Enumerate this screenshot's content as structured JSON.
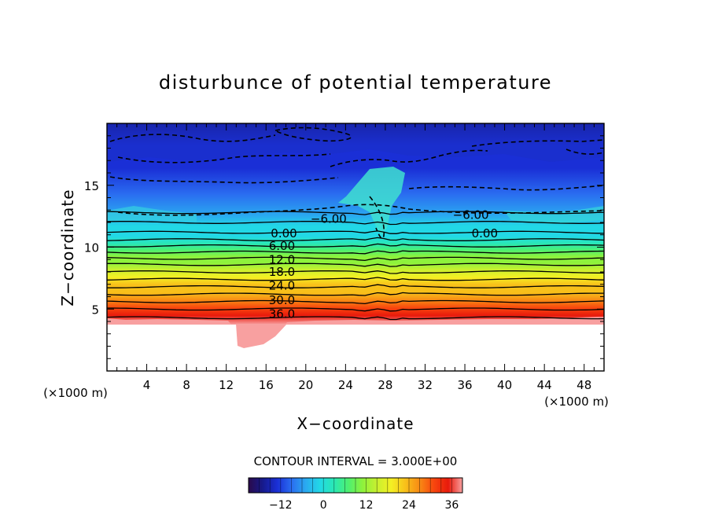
{
  "chart_data": {
    "type": "heatmap",
    "title": "disturbunce of potential temperature",
    "xlabel": "X−coordinate",
    "ylabel": "Z−coordinate",
    "x_unit_left": "(×1000 m)",
    "x_unit_right": "(×1000 m)",
    "xlim": [
      0,
      50
    ],
    "ylim": [
      0,
      20
    ],
    "x_ticks": [
      4,
      8,
      12,
      16,
      20,
      24,
      28,
      32,
      36,
      40,
      44,
      48
    ],
    "y_ticks": [
      5,
      10,
      15
    ],
    "contour_interval_text": "CONTOUR INTERVAL = 3.000E+00",
    "contour_labels": [
      {
        "text": "−6.00",
        "x": 22.3,
        "z": 12.3
      },
      {
        "text": "−6.00",
        "x": 36.6,
        "z": 12.6
      },
      {
        "text": "0.00",
        "x": 17.8,
        "z": 11.1
      },
      {
        "text": "0.00",
        "x": 38.0,
        "z": 11.1
      },
      {
        "text": "6.00",
        "x": 17.6,
        "z": 10.1
      },
      {
        "text": "12.0",
        "x": 17.6,
        "z": 9.0
      },
      {
        "text": "18.0",
        "x": 17.6,
        "z": 8.0
      },
      {
        "text": "24.0",
        "x": 17.6,
        "z": 6.9
      },
      {
        "text": "30.0",
        "x": 17.6,
        "z": 5.7
      },
      {
        "text": "36.0",
        "x": 17.6,
        "z": 4.6
      }
    ],
    "colorbar": {
      "range": [
        -21,
        39
      ],
      "ticks": [
        -12,
        0,
        12,
        24,
        36
      ],
      "tick_labels": [
        "−12",
        "0",
        "12",
        "24",
        "36"
      ]
    },
    "field_description_levels": [
      {
        "z": 4.3,
        "value": 39
      },
      {
        "z": 5.0,
        "value": 36
      },
      {
        "z": 5.6,
        "value": 30
      },
      {
        "z": 6.2,
        "value": 27
      },
      {
        "z": 6.8,
        "value": 24
      },
      {
        "z": 7.4,
        "value": 21
      },
      {
        "z": 8.0,
        "value": 18
      },
      {
        "z": 8.6,
        "value": 15
      },
      {
        "z": 9.1,
        "value": 12
      },
      {
        "z": 9.6,
        "value": 9
      },
      {
        "z": 10.1,
        "value": 6
      },
      {
        "z": 10.6,
        "value": 3
      },
      {
        "z": 11.2,
        "value": 0
      },
      {
        "z": 12.0,
        "value": -3
      },
      {
        "z": 12.8,
        "value": -6
      },
      {
        "z": 14.5,
        "value": -9
      },
      {
        "z": 16.5,
        "value": -12
      },
      {
        "z": 18.3,
        "value": -15
      },
      {
        "z": 20.0,
        "value": -18
      }
    ]
  },
  "colors": {
    "palette": [
      "#2a0a4a",
      "#161a8c",
      "#1a2fd6",
      "#2a6cf0",
      "#2aa9f0",
      "#22d8e6",
      "#2ae8b4",
      "#4ef070",
      "#8ef23c",
      "#c8f030",
      "#f4f024",
      "#f8c01a",
      "#f88a14",
      "#f8460e",
      "#e81a0c",
      "#f8a0a0"
    ]
  }
}
